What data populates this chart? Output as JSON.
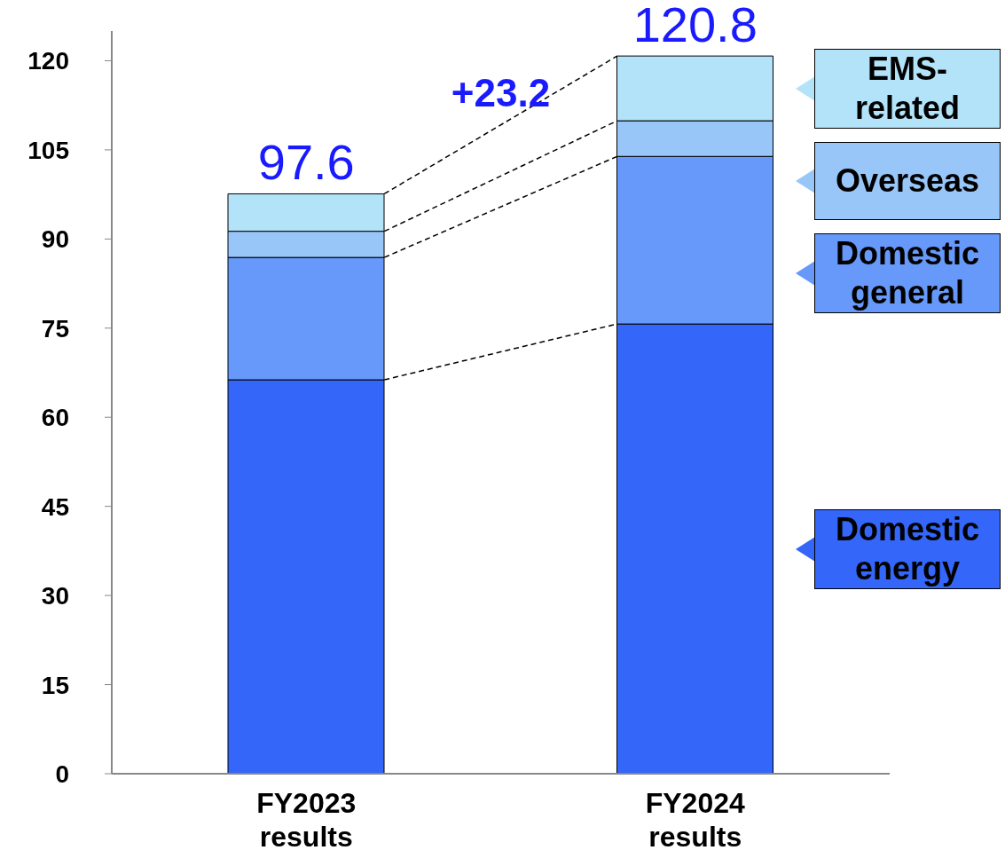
{
  "chart_data": {
    "type": "bar",
    "stacked": true,
    "categories": [
      "FY2023 results",
      "FY2024 results"
    ],
    "series": [
      {
        "name": "Domestic energy",
        "color": "#3366f9",
        "values": [
          66.3,
          75.7
        ]
      },
      {
        "name": "Domestic general",
        "color": "#6699fa",
        "values": [
          20.6,
          28.2
        ]
      },
      {
        "name": "Overseas",
        "color": "#99c6f9",
        "values": [
          4.4,
          6.0
        ]
      },
      {
        "name": "EMS-related",
        "color": "#b3e3f9",
        "values": [
          6.3,
          10.9
        ]
      }
    ],
    "totals": [
      "97.6",
      "120.8"
    ],
    "ylim": [
      0,
      125
    ],
    "yticks": [
      0,
      15,
      30,
      45,
      60,
      75,
      90,
      105,
      120
    ],
    "legend": "right",
    "annotations": [
      "+23.2"
    ]
  }
}
